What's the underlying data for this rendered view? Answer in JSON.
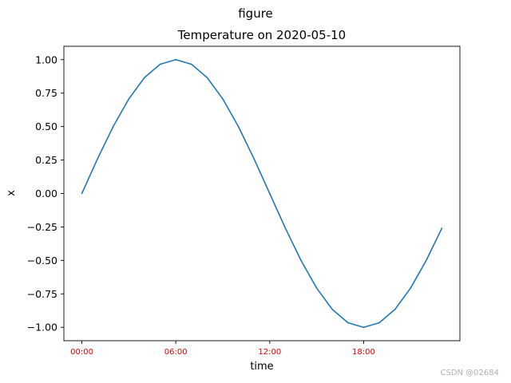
{
  "figure": {
    "suptitle": "figure",
    "watermark": "CSDN @02684"
  },
  "chart_data": {
    "type": "line",
    "title": "Temperature on 2020-05-10",
    "xlabel": "time",
    "ylabel": "x",
    "x_unit": "hour",
    "x": [
      0,
      1,
      2,
      3,
      4,
      5,
      6,
      7,
      8,
      9,
      10,
      11,
      12,
      13,
      14,
      15,
      16,
      17,
      18,
      19,
      20,
      21,
      22,
      23
    ],
    "series": [
      {
        "color": "#1f77b4",
        "values": [
          0.0,
          0.259,
          0.5,
          0.707,
          0.866,
          0.966,
          1.0,
          0.966,
          0.866,
          0.707,
          0.5,
          0.259,
          0.0,
          -0.259,
          -0.5,
          -0.707,
          -0.866,
          -0.966,
          -1.0,
          -0.966,
          -0.866,
          -0.707,
          -0.5,
          -0.259
        ]
      }
    ],
    "xlim": [
      -1.15,
      24.15
    ],
    "ylim": [
      -1.1,
      1.1
    ],
    "x_ticks": [
      {
        "value": 0,
        "label": "00:00"
      },
      {
        "value": 6,
        "label": "06:00"
      },
      {
        "value": 12,
        "label": "12:00"
      },
      {
        "value": 18,
        "label": "18:00"
      }
    ],
    "y_ticks": [
      {
        "value": 1.0,
        "label": "1.00"
      },
      {
        "value": 0.75,
        "label": "0.75"
      },
      {
        "value": 0.5,
        "label": "0.50"
      },
      {
        "value": 0.25,
        "label": "0.25"
      },
      {
        "value": 0.0,
        "label": "0.00"
      },
      {
        "value": -0.25,
        "label": "−0.25"
      },
      {
        "value": -0.5,
        "label": "−0.50"
      },
      {
        "value": -0.75,
        "label": "−0.75"
      },
      {
        "value": -1.0,
        "label": "−1.00"
      }
    ],
    "x_tick_color": "#e00000",
    "grid": false,
    "legend": "none"
  }
}
